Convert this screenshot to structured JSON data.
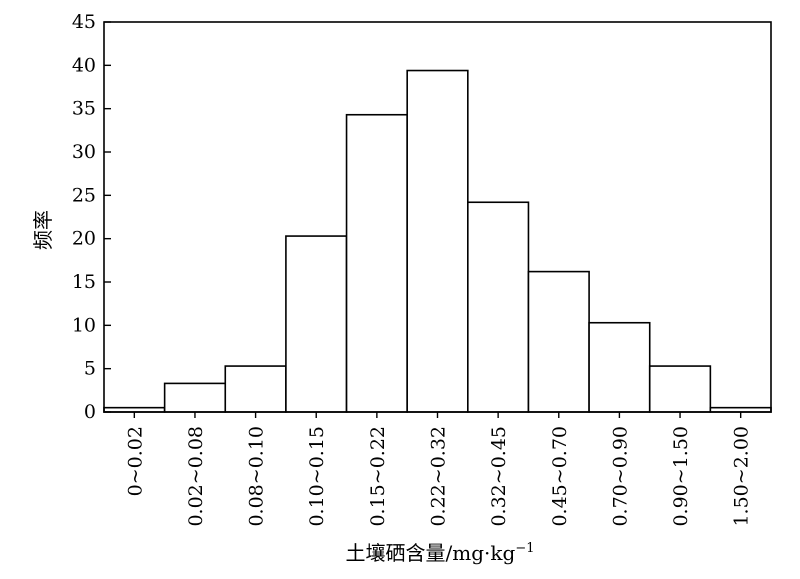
{
  "chart_data": {
    "type": "bar",
    "title": "",
    "xlabel": "土壤硒含量/mg·kg",
    "xlabel_sup": "−1",
    "ylabel": "频率",
    "categories": [
      "0~0.02",
      "0.02~0.08",
      "0.08~0.10",
      "0.10~0.15",
      "0.15~0.22",
      "0.22~0.32",
      "0.32~0.45",
      "0.45~0.70",
      "0.70~0.90",
      "0.90~1.50",
      "1.50~2.00"
    ],
    "values": [
      0.5,
      3.3,
      5.3,
      20.3,
      34.3,
      39.4,
      24.2,
      16.2,
      10.3,
      5.3,
      0.5
    ],
    "ylim": [
      0,
      45
    ],
    "yticks": [
      0,
      5,
      10,
      15,
      20,
      25,
      30,
      35,
      40,
      45
    ],
    "grid": false,
    "bar_fill": "#ffffff",
    "bar_stroke": "#000000"
  }
}
